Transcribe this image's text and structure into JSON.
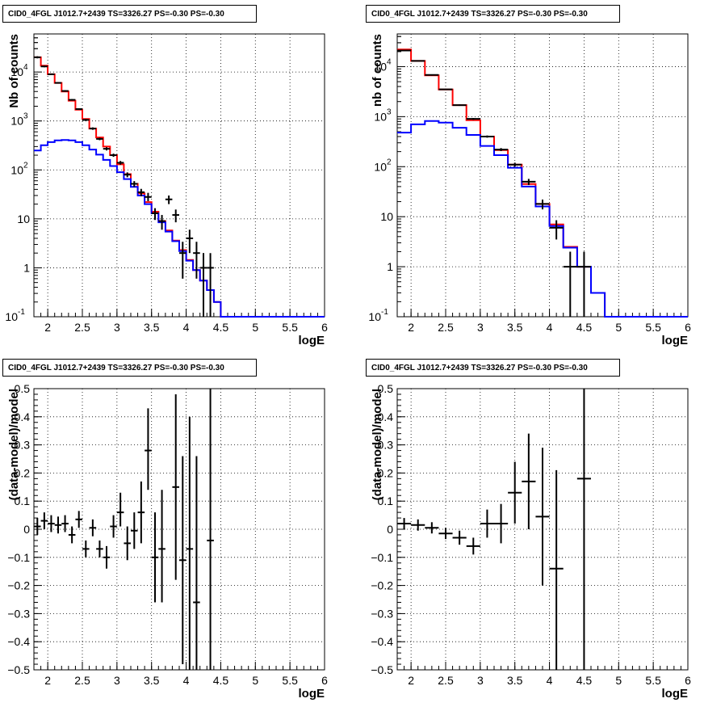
{
  "chart_data": [
    {
      "type": "line",
      "title": "CID0_4FGL J1012.7+2439 TS=3326.27 PS=-0.30 PS=-0.30",
      "xlabel": "logE",
      "ylabel": "Nb of counts",
      "xlim": [
        1.8,
        6.0
      ],
      "ylim": [
        0.1,
        60000
      ],
      "ylog": true,
      "grid": true,
      "xticks": [
        "2",
        "2.5",
        "3",
        "3.5",
        "4",
        "4.5",
        "5",
        "5.5",
        "6"
      ],
      "yticks": [
        "10^-1",
        "1",
        "10",
        "10^2",
        "10^3",
        "10^4"
      ],
      "bin_edges": [
        1.8,
        1.9,
        2.0,
        2.1,
        2.2,
        2.3,
        2.4,
        2.5,
        2.6,
        2.7,
        2.8,
        2.9,
        3.0,
        3.1,
        3.2,
        3.3,
        3.4,
        3.5,
        3.6,
        3.7,
        3.8,
        3.9,
        4.0,
        4.1,
        4.2,
        4.3,
        4.4,
        4.5,
        4.6,
        4.7,
        4.8,
        4.9,
        5.0,
        5.1,
        5.2,
        5.3,
        5.4,
        5.5,
        5.6,
        5.7,
        5.8,
        5.9,
        6.0
      ],
      "series": [
        {
          "color": "#ff0000",
          "style": "histogram",
          "values": [
            20000,
            13500,
            9000,
            6000,
            4000,
            2600,
            1700,
            1100,
            700,
            460,
            300,
            200,
            130,
            82,
            52,
            33,
            22,
            14,
            9,
            5.8,
            3.6,
            2.3,
            1.45,
            0.9,
            0.55,
            0.35,
            0.2,
            0.1,
            0.1,
            0.1,
            0.1,
            0.1,
            0.1,
            0.1,
            0.1,
            0.1,
            0.1,
            0.1,
            0.1,
            0.1,
            0.1,
            0.1
          ]
        },
        {
          "color": "#0000ff",
          "style": "histogram",
          "values": [
            250,
            320,
            370,
            400,
            410,
            400,
            370,
            320,
            260,
            205,
            160,
            120,
            90,
            65,
            45,
            30,
            20,
            13,
            8.5,
            5.5,
            3.5,
            2.2,
            1.4,
            0.9,
            0.55,
            0.35,
            0.2,
            0.1,
            0.1,
            0.1,
            0.1,
            0.1,
            0.1,
            0.1,
            0.1,
            0.1,
            0.1,
            0.1,
            0.1,
            0.1,
            0.1,
            0.1
          ]
        },
        {
          "color": "#000000",
          "style": "points",
          "points": [
            {
              "x": 1.85,
              "y": 20000,
              "ylo": 19000,
              "yhi": 21000
            },
            {
              "x": 1.95,
              "y": 13000,
              "ylo": 12500,
              "yhi": 13500
            },
            {
              "x": 2.05,
              "y": 9000,
              "ylo": 8700,
              "yhi": 9300
            },
            {
              "x": 2.15,
              "y": 6000,
              "ylo": 5800,
              "yhi": 6200
            },
            {
              "x": 2.25,
              "y": 4100,
              "ylo": 3950,
              "yhi": 4250
            },
            {
              "x": 2.35,
              "y": 2700,
              "ylo": 2600,
              "yhi": 2800
            },
            {
              "x": 2.45,
              "y": 1750,
              "ylo": 1680,
              "yhi": 1820
            },
            {
              "x": 2.55,
              "y": 1050,
              "ylo": 1000,
              "yhi": 1100
            },
            {
              "x": 2.65,
              "y": 700,
              "ylo": 660,
              "yhi": 740
            },
            {
              "x": 2.75,
              "y": 430,
              "ylo": 405,
              "yhi": 455
            },
            {
              "x": 2.85,
              "y": 270,
              "ylo": 250,
              "yhi": 290
            },
            {
              "x": 2.95,
              "y": 200,
              "ylo": 185,
              "yhi": 215
            },
            {
              "x": 3.05,
              "y": 140,
              "ylo": 128,
              "yhi": 152
            },
            {
              "x": 3.15,
              "y": 80,
              "ylo": 71,
              "yhi": 89
            },
            {
              "x": 3.25,
              "y": 52,
              "ylo": 45,
              "yhi": 59
            },
            {
              "x": 3.35,
              "y": 35,
              "ylo": 29,
              "yhi": 41
            },
            {
              "x": 3.45,
              "y": 28,
              "ylo": 23,
              "yhi": 34
            },
            {
              "x": 3.55,
              "y": 13,
              "ylo": 9.5,
              "yhi": 16.5
            },
            {
              "x": 3.65,
              "y": 9,
              "ylo": 6,
              "yhi": 12
            },
            {
              "x": 3.75,
              "y": 25,
              "ylo": 20,
              "yhi": 30
            },
            {
              "x": 3.85,
              "y": 12,
              "ylo": 8.5,
              "yhi": 15.5
            },
            {
              "x": 3.95,
              "y": 2,
              "ylo": 0.6,
              "yhi": 3.4
            },
            {
              "x": 4.05,
              "y": 4,
              "ylo": 2,
              "yhi": 6
            },
            {
              "x": 4.15,
              "y": 2,
              "ylo": 0.6,
              "yhi": 3.4
            },
            {
              "x": 4.25,
              "y": 1,
              "ylo": 0.1,
              "yhi": 2
            },
            {
              "x": 4.35,
              "y": 1,
              "ylo": 0.1,
              "yhi": 2
            }
          ]
        }
      ]
    },
    {
      "type": "line",
      "title": "CID0_4FGL J1012.7+2439 TS=3326.27 PS=-0.30 PS=-0.30",
      "xlabel": "logE",
      "ylabel": "nb of counts",
      "xlim": [
        1.8,
        6.0
      ],
      "ylim": [
        0.1,
        45000
      ],
      "ylog": true,
      "grid": true,
      "xticks": [
        "2",
        "2.5",
        "3",
        "3.5",
        "4",
        "4.5",
        "5",
        "5.5",
        "6"
      ],
      "yticks": [
        "10^-1",
        "1",
        "10",
        "10^2",
        "10^3",
        "10^4"
      ],
      "bin_edges": [
        1.8,
        2.0,
        2.2,
        2.4,
        2.6,
        2.8,
        3.0,
        3.2,
        3.4,
        3.6,
        3.8,
        4.0,
        4.2,
        4.4,
        4.6,
        4.8,
        5.0,
        5.2,
        5.4,
        5.6,
        5.8,
        6.0
      ],
      "series": [
        {
          "color": "#ff0000",
          "style": "histogram",
          "values": [
            22000,
            13000,
            6700,
            3500,
            1700,
            850,
            400,
            215,
            110,
            45,
            18,
            7,
            2.5,
            1,
            0.3,
            0.1,
            0.1,
            0.1,
            0.1,
            0.1,
            0.1
          ]
        },
        {
          "color": "#0000ff",
          "style": "histogram",
          "values": [
            480,
            700,
            820,
            760,
            600,
            430,
            260,
            170,
            95,
            40,
            16,
            6.5,
            2.4,
            1,
            0.3,
            0.1,
            0.1,
            0.1,
            0.1,
            0.1,
            0.1
          ]
        },
        {
          "color": "#000000",
          "style": "points",
          "points": [
            {
              "x": 1.9,
              "y": 21000,
              "ylo": 20500,
              "yhi": 21500
            },
            {
              "x": 2.1,
              "y": 13000,
              "ylo": 12700,
              "yhi": 13300
            },
            {
              "x": 2.3,
              "y": 6800,
              "ylo": 6600,
              "yhi": 7000
            },
            {
              "x": 2.5,
              "y": 3500,
              "ylo": 3400,
              "yhi": 3600
            },
            {
              "x": 2.7,
              "y": 1700,
              "ylo": 1640,
              "yhi": 1760
            },
            {
              "x": 2.9,
              "y": 900,
              "ylo": 860,
              "yhi": 940
            },
            {
              "x": 3.1,
              "y": 400,
              "ylo": 380,
              "yhi": 420
            },
            {
              "x": 3.3,
              "y": 220,
              "ylo": 205,
              "yhi": 235
            },
            {
              "x": 3.5,
              "y": 110,
              "ylo": 100,
              "yhi": 120
            },
            {
              "x": 3.7,
              "y": 50,
              "ylo": 43,
              "yhi": 57
            },
            {
              "x": 3.9,
              "y": 18,
              "ylo": 14,
              "yhi": 22
            },
            {
              "x": 4.1,
              "y": 6,
              "ylo": 3.5,
              "yhi": 8.5
            },
            {
              "x": 4.3,
              "y": 1,
              "ylo": 0.1,
              "yhi": 2
            },
            {
              "x": 4.5,
              "y": 1,
              "ylo": 0.1,
              "yhi": 2
            }
          ]
        }
      ]
    },
    {
      "type": "scatter",
      "title": "CID0_4FGL J1012.7+2439 TS=3326.27 PS=-0.30 PS=-0.30",
      "xlabel": "logE",
      "ylabel": "(data-model)/model",
      "xlim": [
        1.8,
        6.0
      ],
      "ylim": [
        -0.5,
        0.5
      ],
      "grid": true,
      "xticks": [
        "2",
        "2.5",
        "3",
        "3.5",
        "4",
        "4.5",
        "5",
        "5.5",
        "6"
      ],
      "yticks": [
        "−0.5",
        "−0.4",
        "−0.3",
        "−0.2",
        "−0.1",
        "0",
        "0.1",
        "0.2",
        "0.3",
        "0.4",
        "0.5"
      ],
      "bin_halfwidth": 0.05,
      "series": [
        {
          "color": "#000000",
          "points": [
            {
              "x": 1.85,
              "y": 0.01,
              "ylo": -0.02,
              "yhi": 0.04
            },
            {
              "x": 1.95,
              "y": 0.03,
              "ylo": 0.0,
              "yhi": 0.06
            },
            {
              "x": 2.05,
              "y": 0.02,
              "ylo": -0.01,
              "yhi": 0.05
            },
            {
              "x": 2.15,
              "y": 0.015,
              "ylo": -0.015,
              "yhi": 0.045
            },
            {
              "x": 2.25,
              "y": 0.02,
              "ylo": -0.01,
              "yhi": 0.05
            },
            {
              "x": 2.35,
              "y": -0.02,
              "ylo": -0.05,
              "yhi": 0.01
            },
            {
              "x": 2.45,
              "y": 0.035,
              "ylo": 0.005,
              "yhi": 0.065
            },
            {
              "x": 2.55,
              "y": -0.07,
              "ylo": -0.1,
              "yhi": -0.04
            },
            {
              "x": 2.65,
              "y": 0.005,
              "ylo": -0.025,
              "yhi": 0.035
            },
            {
              "x": 2.75,
              "y": -0.07,
              "ylo": -0.1,
              "yhi": -0.04
            },
            {
              "x": 2.85,
              "y": -0.1,
              "ylo": -0.14,
              "yhi": -0.06
            },
            {
              "x": 2.95,
              "y": 0.01,
              "ylo": -0.03,
              "yhi": 0.05
            },
            {
              "x": 3.05,
              "y": 0.06,
              "ylo": 0.01,
              "yhi": 0.13
            },
            {
              "x": 3.15,
              "y": -0.05,
              "ylo": -0.11,
              "yhi": 0.01
            },
            {
              "x": 3.25,
              "y": -0.005,
              "ylo": -0.07,
              "yhi": 0.06
            },
            {
              "x": 3.35,
              "y": 0.06,
              "ylo": -0.05,
              "yhi": 0.17
            },
            {
              "x": 3.45,
              "y": 0.28,
              "ylo": 0.14,
              "yhi": 0.43
            },
            {
              "x": 3.55,
              "y": -0.1,
              "ylo": -0.26,
              "yhi": 0.06
            },
            {
              "x": 3.65,
              "y": -0.07,
              "ylo": -0.26,
              "yhi": 0.14
            },
            {
              "x": 3.85,
              "y": 0.15,
              "ylo": -0.18,
              "yhi": 0.48
            },
            {
              "x": 3.95,
              "y": -0.11,
              "ylo": -0.48,
              "yhi": 0.26
            },
            {
              "x": 4.05,
              "y": -0.07,
              "ylo": -0.5,
              "yhi": 0.4
            },
            {
              "x": 4.15,
              "y": -0.26,
              "ylo": -0.5,
              "yhi": 0.26
            },
            {
              "x": 4.35,
              "y": -0.04,
              "ylo": -0.5,
              "yhi": 0.5
            }
          ]
        }
      ]
    },
    {
      "type": "scatter",
      "title": "CID0_4FGL J1012.7+2439 TS=3326.27 PS=-0.30 PS=-0.30",
      "xlabel": "logE",
      "ylabel": "(data-model)/model",
      "xlim": [
        1.8,
        6.0
      ],
      "ylim": [
        -0.5,
        0.5
      ],
      "grid": true,
      "xticks": [
        "2",
        "2.5",
        "3",
        "3.5",
        "4",
        "4.5",
        "5",
        "5.5",
        "6"
      ],
      "yticks": [
        "−0.5",
        "−0.4",
        "−0.3",
        "−0.2",
        "−0.1",
        "0",
        "0.1",
        "0.2",
        "0.3",
        "0.4",
        "0.5"
      ],
      "bin_halfwidth": 0.1,
      "series": [
        {
          "color": "#000000",
          "points": [
            {
              "x": 1.9,
              "y": 0.02,
              "ylo": 0.0,
              "yhi": 0.04
            },
            {
              "x": 2.1,
              "y": 0.015,
              "ylo": -0.005,
              "yhi": 0.035
            },
            {
              "x": 2.3,
              "y": 0.005,
              "ylo": -0.015,
              "yhi": 0.025
            },
            {
              "x": 2.5,
              "y": -0.015,
              "ylo": -0.035,
              "yhi": 0.005
            },
            {
              "x": 2.7,
              "y": -0.03,
              "ylo": -0.055,
              "yhi": -0.005
            },
            {
              "x": 2.9,
              "y": -0.06,
              "ylo": -0.09,
              "yhi": -0.03
            },
            {
              "x": 3.1,
              "y": 0.02,
              "ylo": -0.03,
              "yhi": 0.07
            },
            {
              "x": 3.3,
              "y": 0.02,
              "ylo": -0.05,
              "yhi": 0.09
            },
            {
              "x": 3.5,
              "y": 0.13,
              "ylo": 0.02,
              "yhi": 0.24
            },
            {
              "x": 3.7,
              "y": 0.17,
              "ylo": 0.0,
              "yhi": 0.34
            },
            {
              "x": 3.9,
              "y": 0.045,
              "ylo": -0.2,
              "yhi": 0.29
            },
            {
              "x": 4.1,
              "y": -0.14,
              "ylo": -0.5,
              "yhi": 0.21
            },
            {
              "x": 4.5,
              "y": 0.18,
              "ylo": -0.5,
              "yhi": 0.5
            }
          ]
        }
      ]
    }
  ]
}
